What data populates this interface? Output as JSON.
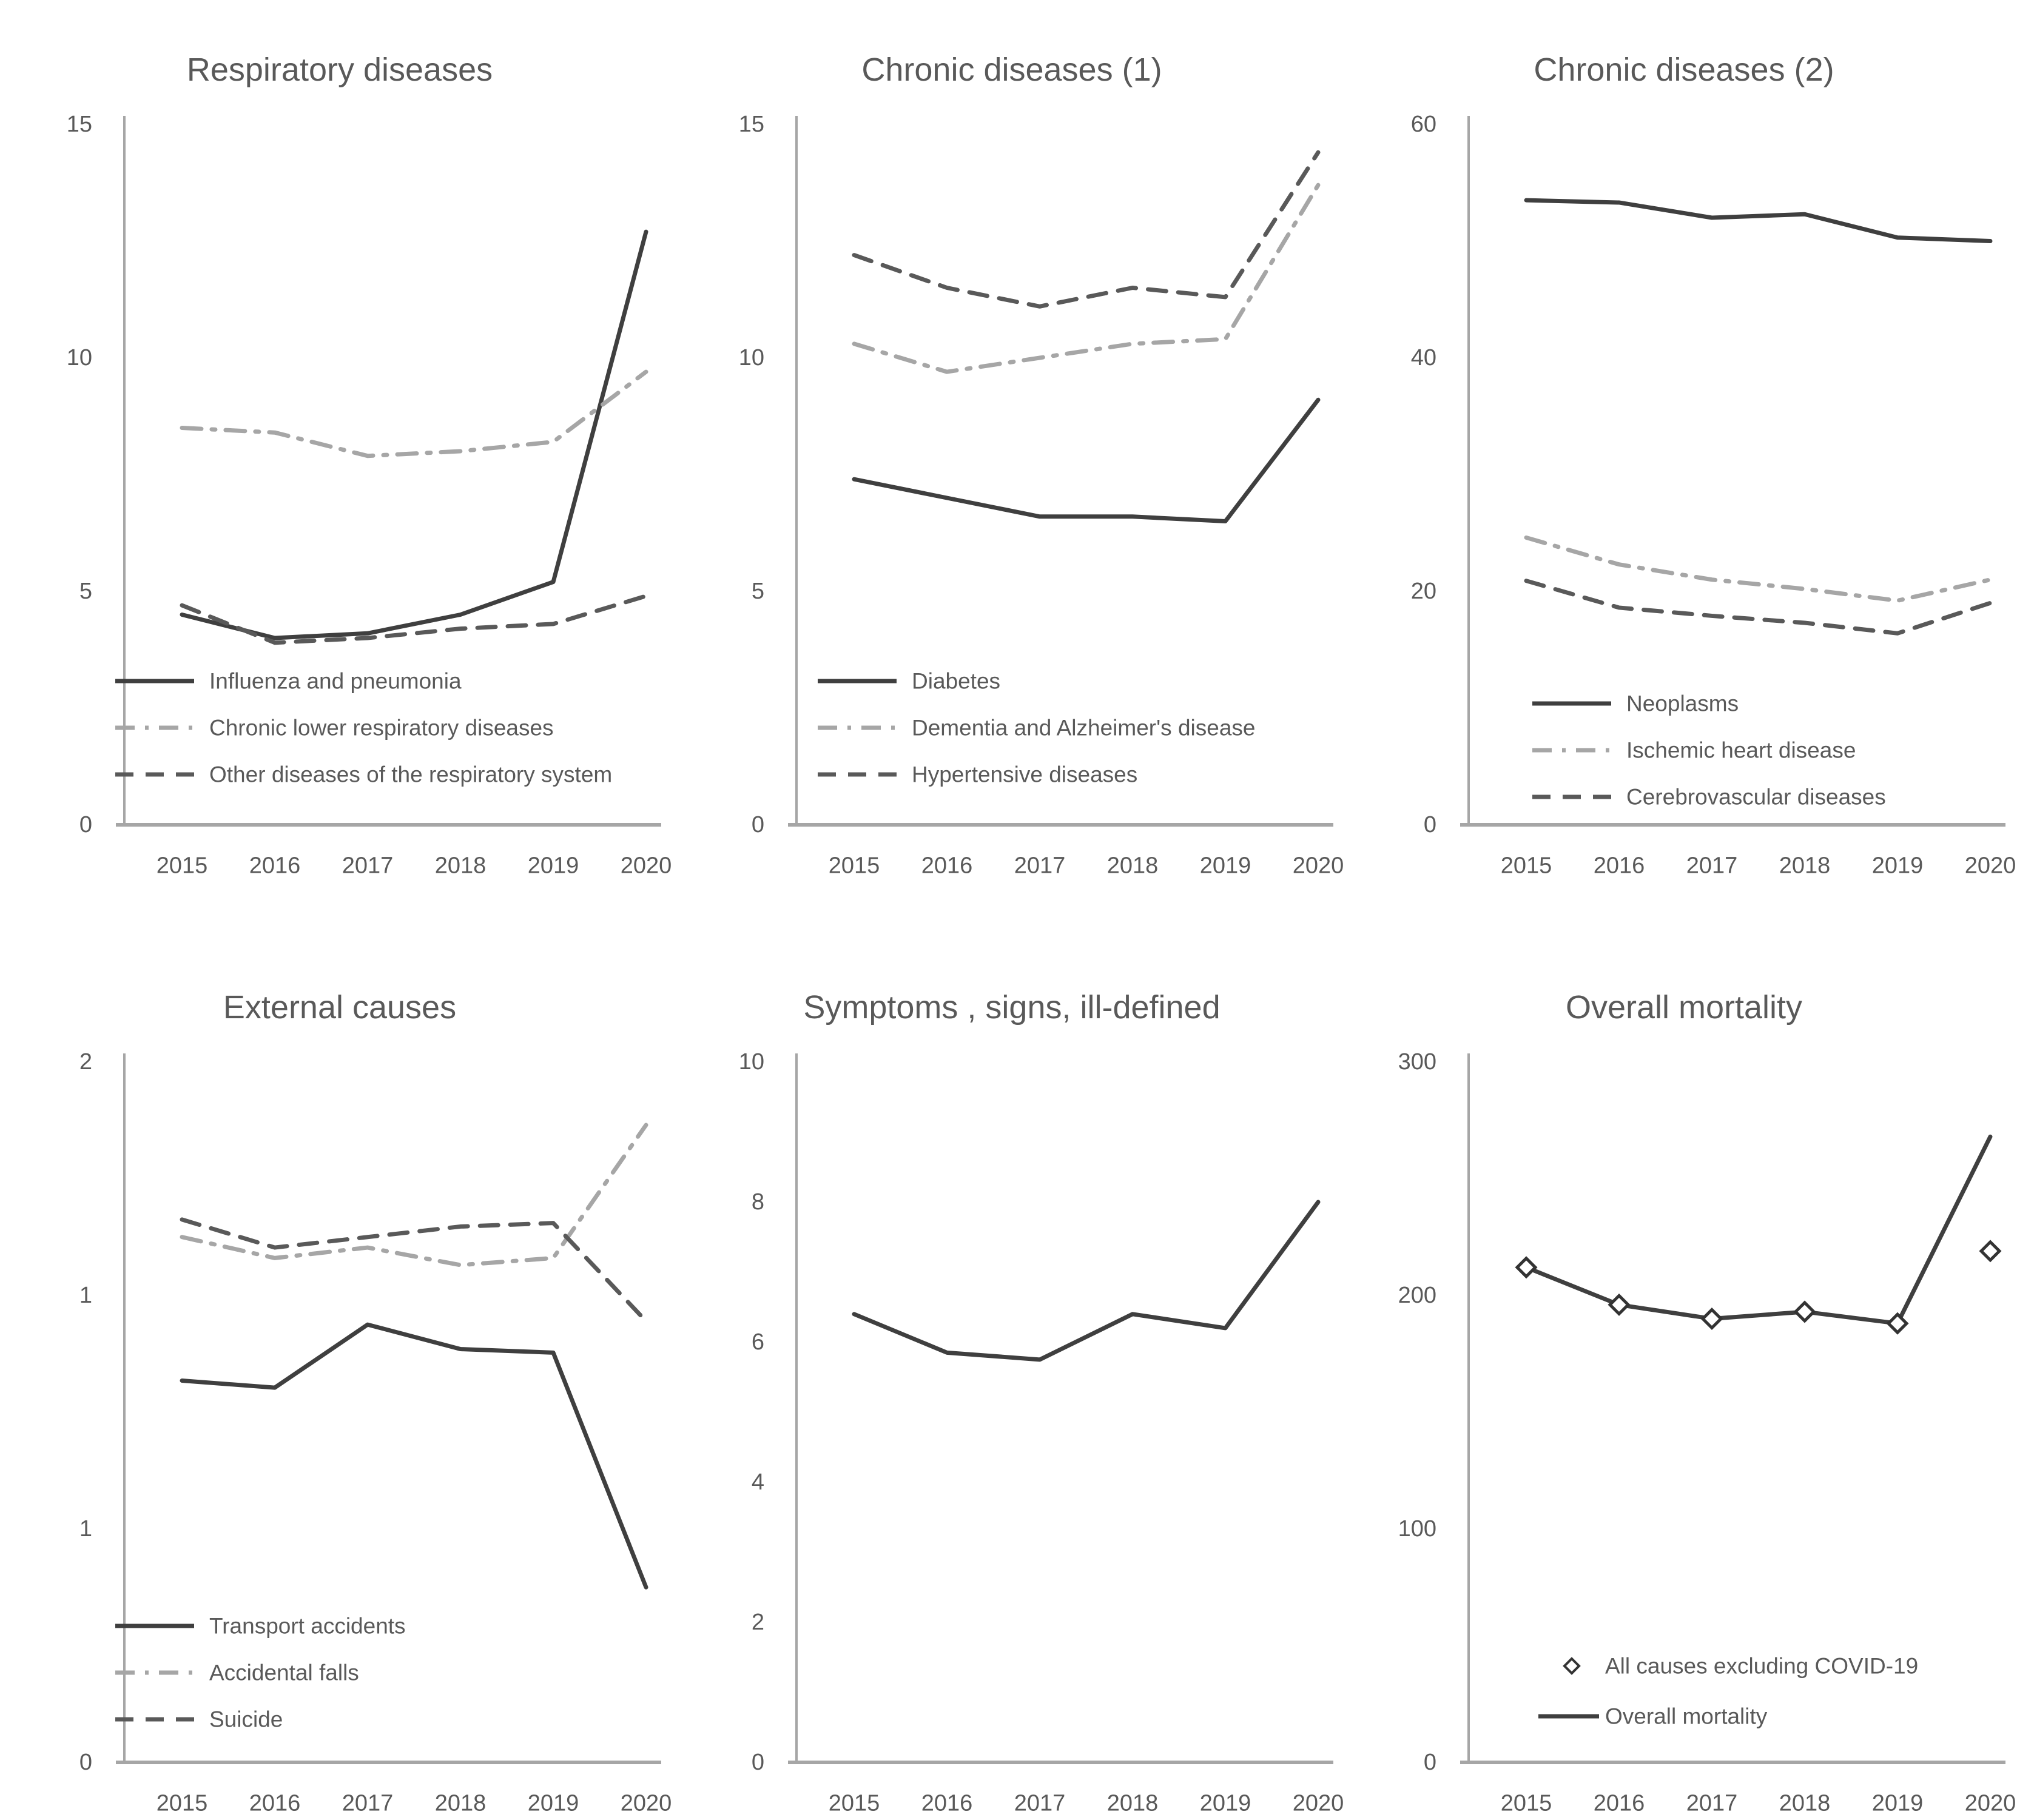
{
  "page": {
    "background": "#ffffff",
    "text_color": "#595959",
    "axis_color": "#a6a6a6"
  },
  "chart_data": [
    {
      "type": "line",
      "id": "respiratory-diseases",
      "title": "Respiratory diseases",
      "x": [
        "2015",
        "2016",
        "2017",
        "2018",
        "2019",
        "2020"
      ],
      "ylim": [
        0,
        15
      ],
      "grid": false,
      "yticks": [
        {
          "v": 0,
          "label": "0"
        },
        {
          "v": 5,
          "label": "5"
        },
        {
          "v": 10,
          "label": "10"
        },
        {
          "v": 15,
          "label": "15"
        }
      ],
      "series": [
        {
          "name": "Influenza and pneumonia",
          "style": "solid",
          "color": "#3f3f3f",
          "values": [
            4.5,
            4.0,
            4.1,
            4.5,
            5.2,
            12.7
          ]
        },
        {
          "name": "Chronic lower respiratory diseases",
          "style": "dashdot",
          "color": "#a6a6a6",
          "values": [
            8.5,
            8.4,
            7.9,
            8.0,
            8.2,
            9.7
          ]
        },
        {
          "name": "Other diseases of the respiratory system",
          "style": "dash",
          "color": "#595959",
          "values": [
            4.7,
            3.9,
            4.0,
            4.2,
            4.3,
            4.9
          ]
        }
      ],
      "legend": {
        "position": "inside-lower-left",
        "x": 190,
        "text_x": 345,
        "y0": 1118,
        "dy": 77,
        "swatch_len": 130,
        "order": [
          0,
          1,
          2
        ]
      }
    },
    {
      "type": "line",
      "id": "chronic-diseases-1",
      "title": "Chronic diseases (1)",
      "x": [
        "2015",
        "2016",
        "2017",
        "2018",
        "2019",
        "2020"
      ],
      "ylim": [
        0,
        15
      ],
      "grid": false,
      "yticks": [
        {
          "v": 0,
          "label": "0"
        },
        {
          "v": 5,
          "label": "5"
        },
        {
          "v": 10,
          "label": "10"
        },
        {
          "v": 15,
          "label": "15"
        }
      ],
      "series": [
        {
          "name": "Diabetes",
          "style": "solid",
          "color": "#3f3f3f",
          "values": [
            7.4,
            7.0,
            6.6,
            6.6,
            6.5,
            9.1
          ]
        },
        {
          "name": "Dementia and Alzheimer's disease",
          "style": "dashdot",
          "color": "#a6a6a6",
          "values": [
            10.3,
            9.7,
            10.0,
            10.3,
            10.4,
            13.7
          ]
        },
        {
          "name": "Hypertensive diseases",
          "style": "dash",
          "color": "#595959",
          "values": [
            12.2,
            11.5,
            11.1,
            11.5,
            11.3,
            14.4
          ]
        }
      ],
      "legend": {
        "position": "inside-lower-left",
        "x": 240,
        "text_x": 395,
        "y0": 1118,
        "dy": 77,
        "swatch_len": 130,
        "order": [
          0,
          1,
          2
        ]
      }
    },
    {
      "type": "line",
      "id": "chronic-diseases-2",
      "title": "Chronic diseases (2)",
      "x": [
        "2015",
        "2016",
        "2017",
        "2018",
        "2019",
        "2020"
      ],
      "ylim": [
        0,
        60
      ],
      "grid": false,
      "yticks": [
        {
          "v": 0,
          "label": "0"
        },
        {
          "v": 20,
          "label": "20"
        },
        {
          "v": 40,
          "label": "40"
        },
        {
          "v": 60,
          "label": "60"
        }
      ],
      "series": [
        {
          "name": "Neoplasms",
          "style": "solid",
          "color": "#3f3f3f",
          "values": [
            53.5,
            53.3,
            52.0,
            52.3,
            50.3,
            50.0
          ]
        },
        {
          "name": "Ischemic heart disease",
          "style": "dashdot",
          "color": "#a6a6a6",
          "values": [
            24.6,
            22.3,
            21.0,
            20.2,
            19.2,
            21.0
          ]
        },
        {
          "name": "Cerebrovascular diseases",
          "style": "dash",
          "color": "#595959",
          "values": [
            20.9,
            18.6,
            17.9,
            17.3,
            16.4,
            19.0
          ]
        }
      ],
      "legend": {
        "position": "inside-lower-center",
        "x": 310,
        "text_x": 465,
        "y0": 1155,
        "dy": 77,
        "swatch_len": 130,
        "order": [
          0,
          1,
          2
        ]
      }
    },
    {
      "type": "line",
      "id": "external-causes",
      "title": "External causes",
      "x": [
        "2015",
        "2016",
        "2017",
        "2018",
        "2019",
        "2020"
      ],
      "ylim": [
        0,
        2
      ],
      "grid": false,
      "yticks": [
        {
          "v": 0,
          "label": "0"
        },
        {
          "v": 0.6667,
          "label": "1"
        },
        {
          "v": 1.3333,
          "label": "1"
        },
        {
          "v": 2,
          "label": "2"
        }
      ],
      "series": [
        {
          "name": "Transport accidents",
          "style": "solid",
          "color": "#3f3f3f",
          "values": [
            1.09,
            1.07,
            1.25,
            1.18,
            1.17,
            0.5
          ]
        },
        {
          "name": "Accidental falls",
          "style": "dashdot",
          "color": "#a6a6a6",
          "values": [
            1.5,
            1.44,
            1.47,
            1.42,
            1.44,
            1.82
          ]
        },
        {
          "name": "Suicide",
          "style": "dash",
          "color": "#595959",
          "values": [
            1.55,
            1.47,
            1.5,
            1.53,
            1.54,
            1.26
          ]
        }
      ],
      "legend": {
        "position": "inside-lower-left",
        "x": 190,
        "text_x": 345,
        "y0": 1130,
        "dy": 77,
        "swatch_len": 130,
        "order": [
          0,
          1,
          2
        ]
      }
    },
    {
      "type": "line",
      "id": "symptoms-signs-ill-defined",
      "title": "Symptoms , signs, ill-defined",
      "x": [
        "2015",
        "2016",
        "2017",
        "2018",
        "2019",
        "2020"
      ],
      "ylim": [
        0,
        10
      ],
      "grid": false,
      "yticks": [
        {
          "v": 0,
          "label": "0"
        },
        {
          "v": 2,
          "label": "2"
        },
        {
          "v": 4,
          "label": "4"
        },
        {
          "v": 6,
          "label": "6"
        },
        {
          "v": 8,
          "label": "8"
        },
        {
          "v": 10,
          "label": "10"
        }
      ],
      "series": [
        {
          "name": "Symptoms, signs, ill-defined",
          "style": "solid",
          "color": "#3f3f3f",
          "values": [
            6.4,
            5.85,
            5.75,
            6.4,
            6.2,
            8.0
          ]
        }
      ],
      "legend": null
    },
    {
      "type": "line",
      "id": "overall-mortality",
      "title": "Overall mortality",
      "x": [
        "2015",
        "2016",
        "2017",
        "2018",
        "2019",
        "2020"
      ],
      "ylim": [
        0,
        300
      ],
      "grid": false,
      "yticks": [
        {
          "v": 0,
          "label": "0"
        },
        {
          "v": 100,
          "label": "100"
        },
        {
          "v": 200,
          "label": "200"
        },
        {
          "v": 300,
          "label": "300"
        }
      ],
      "series": [
        {
          "name": "Overall mortality",
          "style": "solid",
          "color": "#3f3f3f",
          "values": [
            212,
            196,
            190,
            193,
            188,
            268
          ]
        },
        {
          "name": "All causes excluding COVID-19",
          "style": "diamond",
          "color": "#333333",
          "marker_fill": "#ffffff",
          "values": [
            212,
            196,
            190,
            193,
            188,
            219
          ]
        }
      ],
      "legend": {
        "position": "inside-lower-center",
        "x": 320,
        "text_x": 430,
        "y0": 1196,
        "dy": 83,
        "swatch_len": 100,
        "order": [
          1,
          0
        ]
      }
    }
  ]
}
